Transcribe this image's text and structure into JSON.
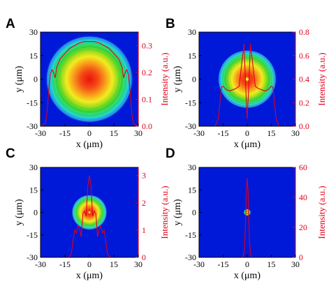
{
  "chart_data": [
    {
      "panel_label": "A",
      "type": "heatmap",
      "xlabel": "x (μm)",
      "ylabel": "y (μm)",
      "y2label": "Intensity (a.u.)",
      "xlim": [
        -30,
        30
      ],
      "ylim": [
        -30,
        30
      ],
      "y2lim": [
        0,
        0.35
      ],
      "xticks": [
        "-30",
        "-15",
        "0",
        "15",
        "30"
      ],
      "yticks": [
        "30",
        "15",
        "0",
        "-15",
        "-30"
      ],
      "y2ticks": [
        "0.0",
        "0.1",
        "0.2",
        "0.3"
      ],
      "spot_radius_um": 25,
      "series": [
        {
          "x": [
            -30,
            -27,
            -26,
            -25,
            -24,
            -23,
            -22,
            -21,
            -20,
            -18,
            -15,
            -12,
            -9,
            -6,
            -3,
            0,
            3,
            6,
            9,
            12,
            15,
            18,
            20,
            21,
            22,
            23,
            24,
            25,
            26,
            27,
            30
          ],
          "y": [
            0.0,
            0.01,
            0.05,
            0.13,
            0.19,
            0.21,
            0.2,
            0.18,
            0.22,
            0.25,
            0.27,
            0.29,
            0.3,
            0.31,
            0.315,
            0.315,
            0.315,
            0.31,
            0.3,
            0.29,
            0.27,
            0.25,
            0.22,
            0.18,
            0.2,
            0.21,
            0.19,
            0.13,
            0.05,
            0.01,
            0.0
          ]
        }
      ]
    },
    {
      "panel_label": "B",
      "type": "heatmap",
      "xlabel": "x (μm)",
      "ylabel": "y (μm)",
      "y2label": "Intensity (a.u.)",
      "xlim": [
        -30,
        30
      ],
      "ylim": [
        -30,
        30
      ],
      "y2lim": [
        0,
        0.8
      ],
      "xticks": [
        "-30",
        "-15",
        "0",
        "15",
        "30"
      ],
      "yticks": [
        "30",
        "15",
        "0",
        "-15",
        "-30"
      ],
      "y2ticks": [
        "0.0",
        "0.2",
        "0.4",
        "0.6",
        "0.8"
      ],
      "spot_radius_um": 17,
      "series": [
        {
          "x": [
            -20,
            -18,
            -17,
            -16,
            -15,
            -13,
            -11,
            -9,
            -7,
            -5,
            -3,
            -2,
            -1,
            0,
            1,
            2,
            3,
            5,
            7,
            9,
            11,
            13,
            15,
            16,
            17,
            18,
            20
          ],
          "y": [
            0.0,
            0.06,
            0.2,
            0.33,
            0.34,
            0.31,
            0.3,
            0.31,
            0.32,
            0.34,
            0.58,
            0.7,
            0.35,
            0.06,
            0.35,
            0.7,
            0.58,
            0.34,
            0.32,
            0.31,
            0.3,
            0.31,
            0.34,
            0.33,
            0.2,
            0.06,
            0.0
          ]
        }
      ]
    },
    {
      "panel_label": "C",
      "type": "heatmap",
      "xlabel": "x (μm)",
      "ylabel": "y (μm)",
      "y2label": "Intensity (a.u.)",
      "xlim": [
        -30,
        30
      ],
      "ylim": [
        -30,
        30
      ],
      "y2lim": [
        0,
        3.3
      ],
      "xticks": [
        "-30",
        "-15",
        "0",
        "15",
        "30"
      ],
      "yticks": [
        "30",
        "15",
        "0",
        "-15",
        "-30"
      ],
      "y2ticks": [
        "0",
        "1",
        "2",
        "3"
      ],
      "spot_radius_um": 10,
      "series": [
        {
          "x": [
            -14,
            -12,
            -11,
            -10,
            -9,
            -8,
            -7,
            -6,
            -5,
            -4,
            -3,
            -2,
            -1,
            0,
            1,
            2,
            3,
            4,
            5,
            6,
            7,
            8,
            9,
            10,
            11,
            12,
            14
          ],
          "y": [
            0.0,
            0.03,
            0.15,
            0.65,
            1.0,
            0.9,
            1.15,
            1.05,
            0.75,
            1.6,
            1.7,
            1.5,
            2.6,
            3.0,
            2.6,
            1.5,
            1.7,
            1.6,
            0.75,
            1.05,
            1.15,
            0.9,
            1.0,
            0.65,
            0.15,
            0.03,
            0.0
          ]
        }
      ]
    },
    {
      "panel_label": "D",
      "type": "heatmap",
      "xlabel": "x (μm)",
      "ylabel": "y (μm)",
      "y2label": "Intensity (a.u.)",
      "xlim": [
        -30,
        30
      ],
      "ylim": [
        -30,
        30
      ],
      "y2lim": [
        0,
        60
      ],
      "xticks": [
        "-30",
        "-15",
        "0",
        "15",
        "30"
      ],
      "yticks": [
        "30",
        "15",
        "0",
        "-15",
        "-30"
      ],
      "y2ticks": [
        "0",
        "20",
        "40",
        "60"
      ],
      "spot_radius_um": 2,
      "series": [
        {
          "x": [
            -3,
            -2.5,
            -2,
            -1.5,
            -1,
            -0.5,
            0,
            0.5,
            1,
            1.5,
            2,
            2.5,
            3
          ],
          "y": [
            0.0,
            1,
            3,
            10,
            25,
            45,
            53,
            45,
            25,
            10,
            3,
            1,
            0.0
          ]
        }
      ]
    }
  ],
  "colors": {
    "profile": "#e0001a",
    "right_axis": "#e0001a",
    "background": "#0018d8",
    "colormap": [
      "#0018d8",
      "#1a6ff0",
      "#19c8e8",
      "#22d880",
      "#3ad22a",
      "#a9dd1a",
      "#f2ec20",
      "#f8a21c",
      "#f54a16",
      "#e8140e"
    ]
  }
}
